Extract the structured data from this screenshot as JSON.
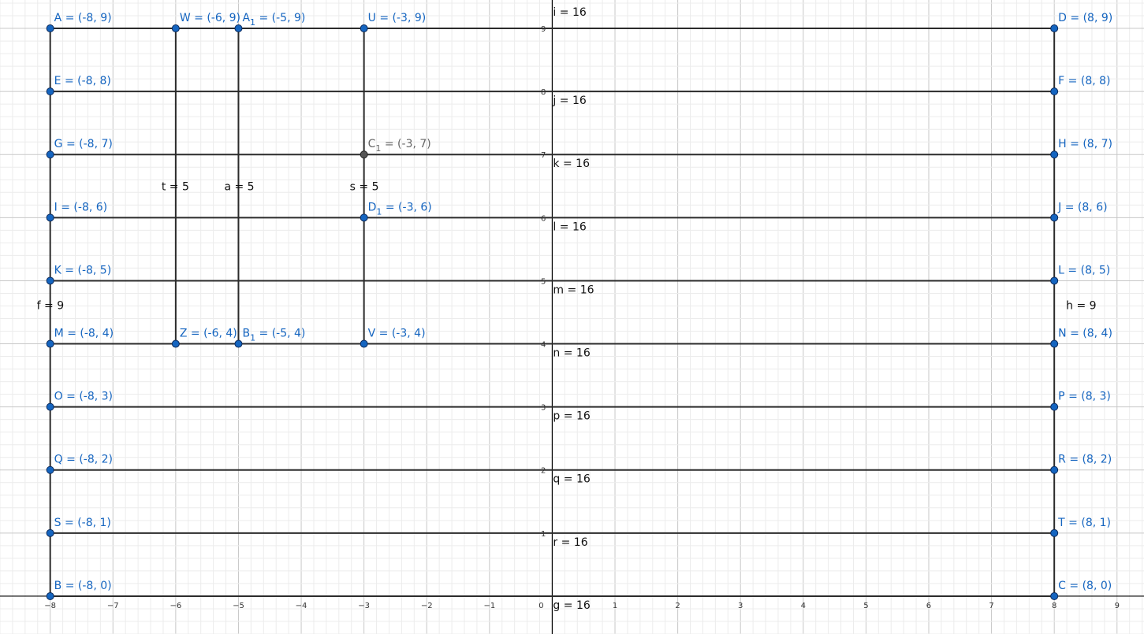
{
  "view": {
    "xmin": -8.8,
    "xmax": 9.43,
    "ymin": -0.6,
    "ymax": 9.45
  },
  "axes": {
    "x_ticks": [
      "-8",
      "-7",
      "-6",
      "-5",
      "-4",
      "-3",
      "-2",
      "-1",
      "0",
      "1",
      "2",
      "3",
      "4",
      "5",
      "6",
      "7",
      "8",
      "9"
    ],
    "y_ticks": [
      "1",
      "2",
      "3",
      "4",
      "5",
      "6",
      "7",
      "8",
      "9"
    ]
  },
  "points": [
    {
      "label": "A = (-8, 9)",
      "x": -8,
      "y": 9
    },
    {
      "label": "W = (-6, 9)",
      "x": -6,
      "y": 9
    },
    {
      "label": "A",
      "sub": "1",
      "rest": " = (-5, 9)",
      "x": -5,
      "y": 9
    },
    {
      "label": "U = (-3, 9)",
      "x": -3,
      "y": 9
    },
    {
      "label": "D = (8, 9)",
      "x": 8,
      "y": 9
    },
    {
      "label": "E = (-8, 8)",
      "x": -8,
      "y": 8
    },
    {
      "label": "F = (8, 8)",
      "x": 8,
      "y": 8
    },
    {
      "label": "G = (-8, 7)",
      "x": -8,
      "y": 7
    },
    {
      "label": "C",
      "sub": "1",
      "rest": " = (-3, 7)",
      "x": -3,
      "y": 7,
      "style": "gray"
    },
    {
      "label": "H = (8, 7)",
      "x": 8,
      "y": 7
    },
    {
      "label": "I = (-8, 6)",
      "x": -8,
      "y": 6
    },
    {
      "label": "D",
      "sub": "1",
      "rest": " = (-3, 6)",
      "x": -3,
      "y": 6
    },
    {
      "label": "J = (8, 6)",
      "x": 8,
      "y": 6
    },
    {
      "label": "K = (-8, 5)",
      "x": -8,
      "y": 5
    },
    {
      "label": "L = (8, 5)",
      "x": 8,
      "y": 5
    },
    {
      "label": "M = (-8, 4)",
      "x": -8,
      "y": 4
    },
    {
      "label": "Z = (-6, 4)",
      "x": -6,
      "y": 4
    },
    {
      "label": "B",
      "sub": "1",
      "rest": " = (-5, 4)",
      "x": -5,
      "y": 4
    },
    {
      "label": "V = (-3, 4)",
      "x": -3,
      "y": 4
    },
    {
      "label": "N = (8, 4)",
      "x": 8,
      "y": 4
    },
    {
      "label": "O = (-8, 3)",
      "x": -8,
      "y": 3
    },
    {
      "label": "P = (8, 3)",
      "x": 8,
      "y": 3
    },
    {
      "label": "Q = (-8, 2)",
      "x": -8,
      "y": 2
    },
    {
      "label": "R = (8, 2)",
      "x": 8,
      "y": 2
    },
    {
      "label": "S = (-8, 1)",
      "x": -8,
      "y": 1
    },
    {
      "label": "T = (8, 1)",
      "x": 8,
      "y": 1
    },
    {
      "label": "B = (-8, 0)",
      "x": -8,
      "y": 0
    },
    {
      "label": "C = (8, 0)",
      "x": 8,
      "y": 0
    }
  ],
  "segments": [
    {
      "name": "i = 16",
      "x1": -8,
      "y1": 9,
      "x2": 8,
      "y2": 9
    },
    {
      "name": "j = 16",
      "x1": -8,
      "y1": 8,
      "x2": 8,
      "y2": 8
    },
    {
      "name": "k = 16",
      "x1": -8,
      "y1": 7,
      "x2": 8,
      "y2": 7
    },
    {
      "name": "l = 16",
      "x1": -8,
      "y1": 6,
      "x2": 8,
      "y2": 6
    },
    {
      "name": "m = 16",
      "x1": -8,
      "y1": 5,
      "x2": 8,
      "y2": 5
    },
    {
      "name": "n = 16",
      "x1": -8,
      "y1": 4,
      "x2": 8,
      "y2": 4
    },
    {
      "name": "p = 16",
      "x1": -8,
      "y1": 3,
      "x2": 8,
      "y2": 3
    },
    {
      "name": "q = 16",
      "x1": -8,
      "y1": 2,
      "x2": 8,
      "y2": 2
    },
    {
      "name": "r = 16",
      "x1": -8,
      "y1": 1,
      "x2": 8,
      "y2": 1
    },
    {
      "name": "g = 16",
      "x1": -8,
      "y1": 0,
      "x2": 8,
      "y2": 0
    },
    {
      "name": "f = 9",
      "x1": -8,
      "y1": 0,
      "x2": -8,
      "y2": 9
    },
    {
      "name": "h = 9",
      "x1": 8,
      "y1": 0,
      "x2": 8,
      "y2": 9
    },
    {
      "name": "t = 5",
      "x1": -6,
      "y1": 4,
      "x2": -6,
      "y2": 9
    },
    {
      "name": "a = 5",
      "x1": -5,
      "y1": 4,
      "x2": -5,
      "y2": 9
    },
    {
      "name": "s = 5",
      "x1": -3,
      "y1": 4,
      "x2": -3,
      "y2": 9
    }
  ]
}
